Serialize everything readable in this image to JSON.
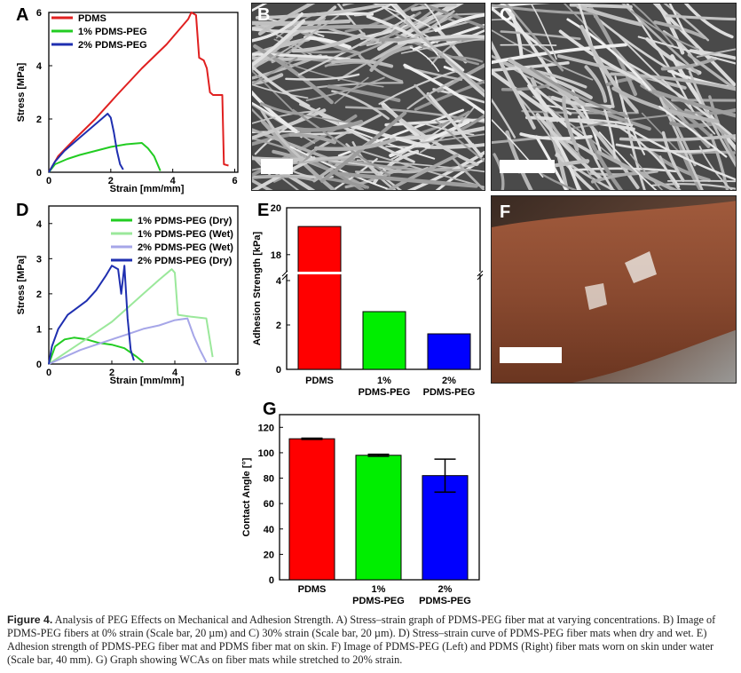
{
  "labels": {
    "A": "A",
    "B": "B",
    "C": "C",
    "D": "D",
    "E": "E",
    "F": "F",
    "G": "G"
  },
  "colors": {
    "pdms": "#e02020",
    "peg1": "#22cc22",
    "peg2": "#1f2fb0",
    "peg1wet": "#9be89b",
    "peg2wet": "#a6a6e8",
    "bar_red": "#ff0000",
    "bar_green": "#00ee00",
    "bar_blue": "#0000ff"
  },
  "chart_data": [
    {
      "id": "A",
      "type": "line",
      "xlabel": "Strain [mm/mm]",
      "ylabel": "Stress [MPa]",
      "xlim": [
        0,
        6.1
      ],
      "ylim": [
        0,
        6
      ],
      "xticks": [
        "0",
        "2",
        "4",
        "6"
      ],
      "yticks": [
        "0",
        "2",
        "4",
        "6"
      ],
      "legend_position": "top-left",
      "series": [
        {
          "name": "PDMS",
          "color": "#e02020",
          "points": [
            [
              0,
              0
            ],
            [
              0.3,
              0.6
            ],
            [
              0.8,
              1.2
            ],
            [
              1.5,
              2.0
            ],
            [
              2.2,
              2.9
            ],
            [
              3.0,
              3.9
            ],
            [
              3.8,
              4.8
            ],
            [
              4.5,
              5.75
            ],
            [
              4.6,
              6.0
            ],
            [
              4.75,
              5.9
            ],
            [
              4.85,
              4.3
            ],
            [
              5.0,
              4.2
            ],
            [
              5.1,
              3.9
            ],
            [
              5.2,
              3.0
            ],
            [
              5.3,
              2.9
            ],
            [
              5.6,
              2.9
            ],
            [
              5.65,
              0.3
            ],
            [
              5.8,
              0.25
            ]
          ]
        },
        {
          "name": "1% PDMS-PEG",
          "color": "#22cc22",
          "points": [
            [
              0,
              0
            ],
            [
              0.2,
              0.3
            ],
            [
              0.6,
              0.5
            ],
            [
              1.0,
              0.65
            ],
            [
              1.5,
              0.8
            ],
            [
              2.0,
              0.95
            ],
            [
              2.5,
              1.05
            ],
            [
              3.0,
              1.1
            ],
            [
              3.2,
              0.9
            ],
            [
              3.4,
              0.6
            ],
            [
              3.6,
              0.05
            ]
          ]
        },
        {
          "name": "2% PDMS-PEG",
          "color": "#1f2fb0",
          "points": [
            [
              0,
              0
            ],
            [
              0.2,
              0.4
            ],
            [
              0.5,
              0.8
            ],
            [
              0.8,
              1.1
            ],
            [
              1.1,
              1.4
            ],
            [
              1.3,
              1.6
            ],
            [
              1.5,
              1.8
            ],
            [
              1.7,
              2.0
            ],
            [
              1.9,
              2.2
            ],
            [
              2.0,
              2.05
            ],
            [
              2.1,
              1.5
            ],
            [
              2.2,
              0.8
            ],
            [
              2.3,
              0.3
            ],
            [
              2.4,
              0.1
            ]
          ]
        }
      ]
    },
    {
      "id": "D",
      "type": "line",
      "xlabel": "Strain [mm/mm]",
      "ylabel": "Stress [MPa]",
      "xlim": [
        0,
        6
      ],
      "ylim": [
        0,
        4.5
      ],
      "xticks": [
        "0",
        "2",
        "4",
        "6"
      ],
      "yticks": [
        "0",
        "1",
        "2",
        "3",
        "4"
      ],
      "legend_position": "top-right",
      "series": [
        {
          "name": "1% PDMS-PEG (Dry)",
          "color": "#22cc22",
          "points": [
            [
              0,
              0
            ],
            [
              0.2,
              0.5
            ],
            [
              0.5,
              0.7
            ],
            [
              0.8,
              0.75
            ],
            [
              1.2,
              0.7
            ],
            [
              1.6,
              0.6
            ],
            [
              2.0,
              0.55
            ],
            [
              2.4,
              0.45
            ],
            [
              2.8,
              0.2
            ],
            [
              3.0,
              0.05
            ]
          ]
        },
        {
          "name": "1% PDMS-PEG (Wet)",
          "color": "#9be89b",
          "points": [
            [
              0,
              0
            ],
            [
              0.5,
              0.3
            ],
            [
              1.0,
              0.6
            ],
            [
              1.5,
              0.9
            ],
            [
              2.0,
              1.2
            ],
            [
              2.5,
              1.6
            ],
            [
              3.0,
              2.0
            ],
            [
              3.5,
              2.4
            ],
            [
              3.9,
              2.7
            ],
            [
              4.0,
              2.6
            ],
            [
              4.1,
              1.4
            ],
            [
              4.5,
              1.35
            ],
            [
              5.0,
              1.3
            ],
            [
              5.2,
              0.2
            ]
          ]
        },
        {
          "name": "2% PDMS-PEG (Wet)",
          "color": "#a6a6e8",
          "points": [
            [
              0,
              0
            ],
            [
              0.5,
              0.2
            ],
            [
              1.0,
              0.4
            ],
            [
              1.5,
              0.55
            ],
            [
              2.0,
              0.7
            ],
            [
              2.5,
              0.85
            ],
            [
              3.0,
              1.0
            ],
            [
              3.5,
              1.1
            ],
            [
              4.0,
              1.25
            ],
            [
              4.4,
              1.3
            ],
            [
              4.6,
              0.8
            ],
            [
              4.8,
              0.4
            ],
            [
              5.0,
              0.05
            ]
          ]
        },
        {
          "name": "2% PDMS-PEG (Dry)",
          "color": "#1f2fb0",
          "points": [
            [
              0,
              0
            ],
            [
              0.1,
              0.5
            ],
            [
              0.3,
              1.0
            ],
            [
              0.6,
              1.4
            ],
            [
              0.9,
              1.6
            ],
            [
              1.2,
              1.8
            ],
            [
              1.5,
              2.1
            ],
            [
              1.8,
              2.5
            ],
            [
              2.0,
              2.8
            ],
            [
              2.2,
              2.7
            ],
            [
              2.3,
              2.0
            ],
            [
              2.4,
              2.8
            ],
            [
              2.5,
              1.3
            ],
            [
              2.6,
              0.4
            ],
            [
              2.7,
              0.1
            ]
          ]
        }
      ]
    },
    {
      "id": "E",
      "type": "bar",
      "ylabel": "Adhesion Strength [kPa]",
      "categories": [
        "PDMS",
        "1% PDMS-PEG",
        "2% PDMS-PEG"
      ],
      "category_lines": [
        [
          "PDMS"
        ],
        [
          "1%",
          "PDMS-PEG"
        ],
        [
          "2%",
          "PDMS-PEG"
        ]
      ],
      "values": [
        19.2,
        2.6,
        1.6
      ],
      "bar_colors": [
        "#ff0000",
        "#00ee00",
        "#0000ff"
      ],
      "axis_break": {
        "lower": [
          0,
          4
        ],
        "upper": [
          17.5,
          20
        ]
      },
      "yticks": [
        "0",
        "2",
        "4",
        "18",
        "20"
      ]
    },
    {
      "id": "G",
      "type": "bar",
      "ylabel": "Contact Angle [°]",
      "categories": [
        "PDMS",
        "1% PDMS-PEG",
        "2% PDMS-PEG"
      ],
      "category_lines": [
        [
          "PDMS"
        ],
        [
          "1%",
          "PDMS-PEG"
        ],
        [
          "2%",
          "PDMS-PEG"
        ]
      ],
      "values": [
        111,
        98,
        82
      ],
      "errors": [
        0.5,
        0.8,
        13
      ],
      "bar_colors": [
        "#ff0000",
        "#00ee00",
        "#0000ff"
      ],
      "ylim": [
        0,
        130
      ],
      "yticks": [
        "0",
        "20",
        "40",
        "60",
        "80",
        "100",
        "120"
      ]
    }
  ],
  "caption": {
    "lead": "Figure 4.",
    "text": " Analysis of PEG Effects on Mechanical and Adhesion Strength. A) Stress–strain graph of PDMS-PEG fiber mat at varying concentrations. B) Image of PDMS-PEG fibers at 0% strain (Scale bar, 20 µm) and C) 30% strain (Scale bar, 20 µm). D) Stress–strain curve of PDMS-PEG fiber mats when dry and wet. E) Adhesion strength of PDMS-PEG fiber mat and PDMS fiber mat on skin. F) Image of PDMS-PEG (Left) and PDMS (Right) fiber mats worn on skin under water (Scale bar, 40 mm). G) Graph showing WCAs on fiber mats while stretched to 20% strain."
  }
}
